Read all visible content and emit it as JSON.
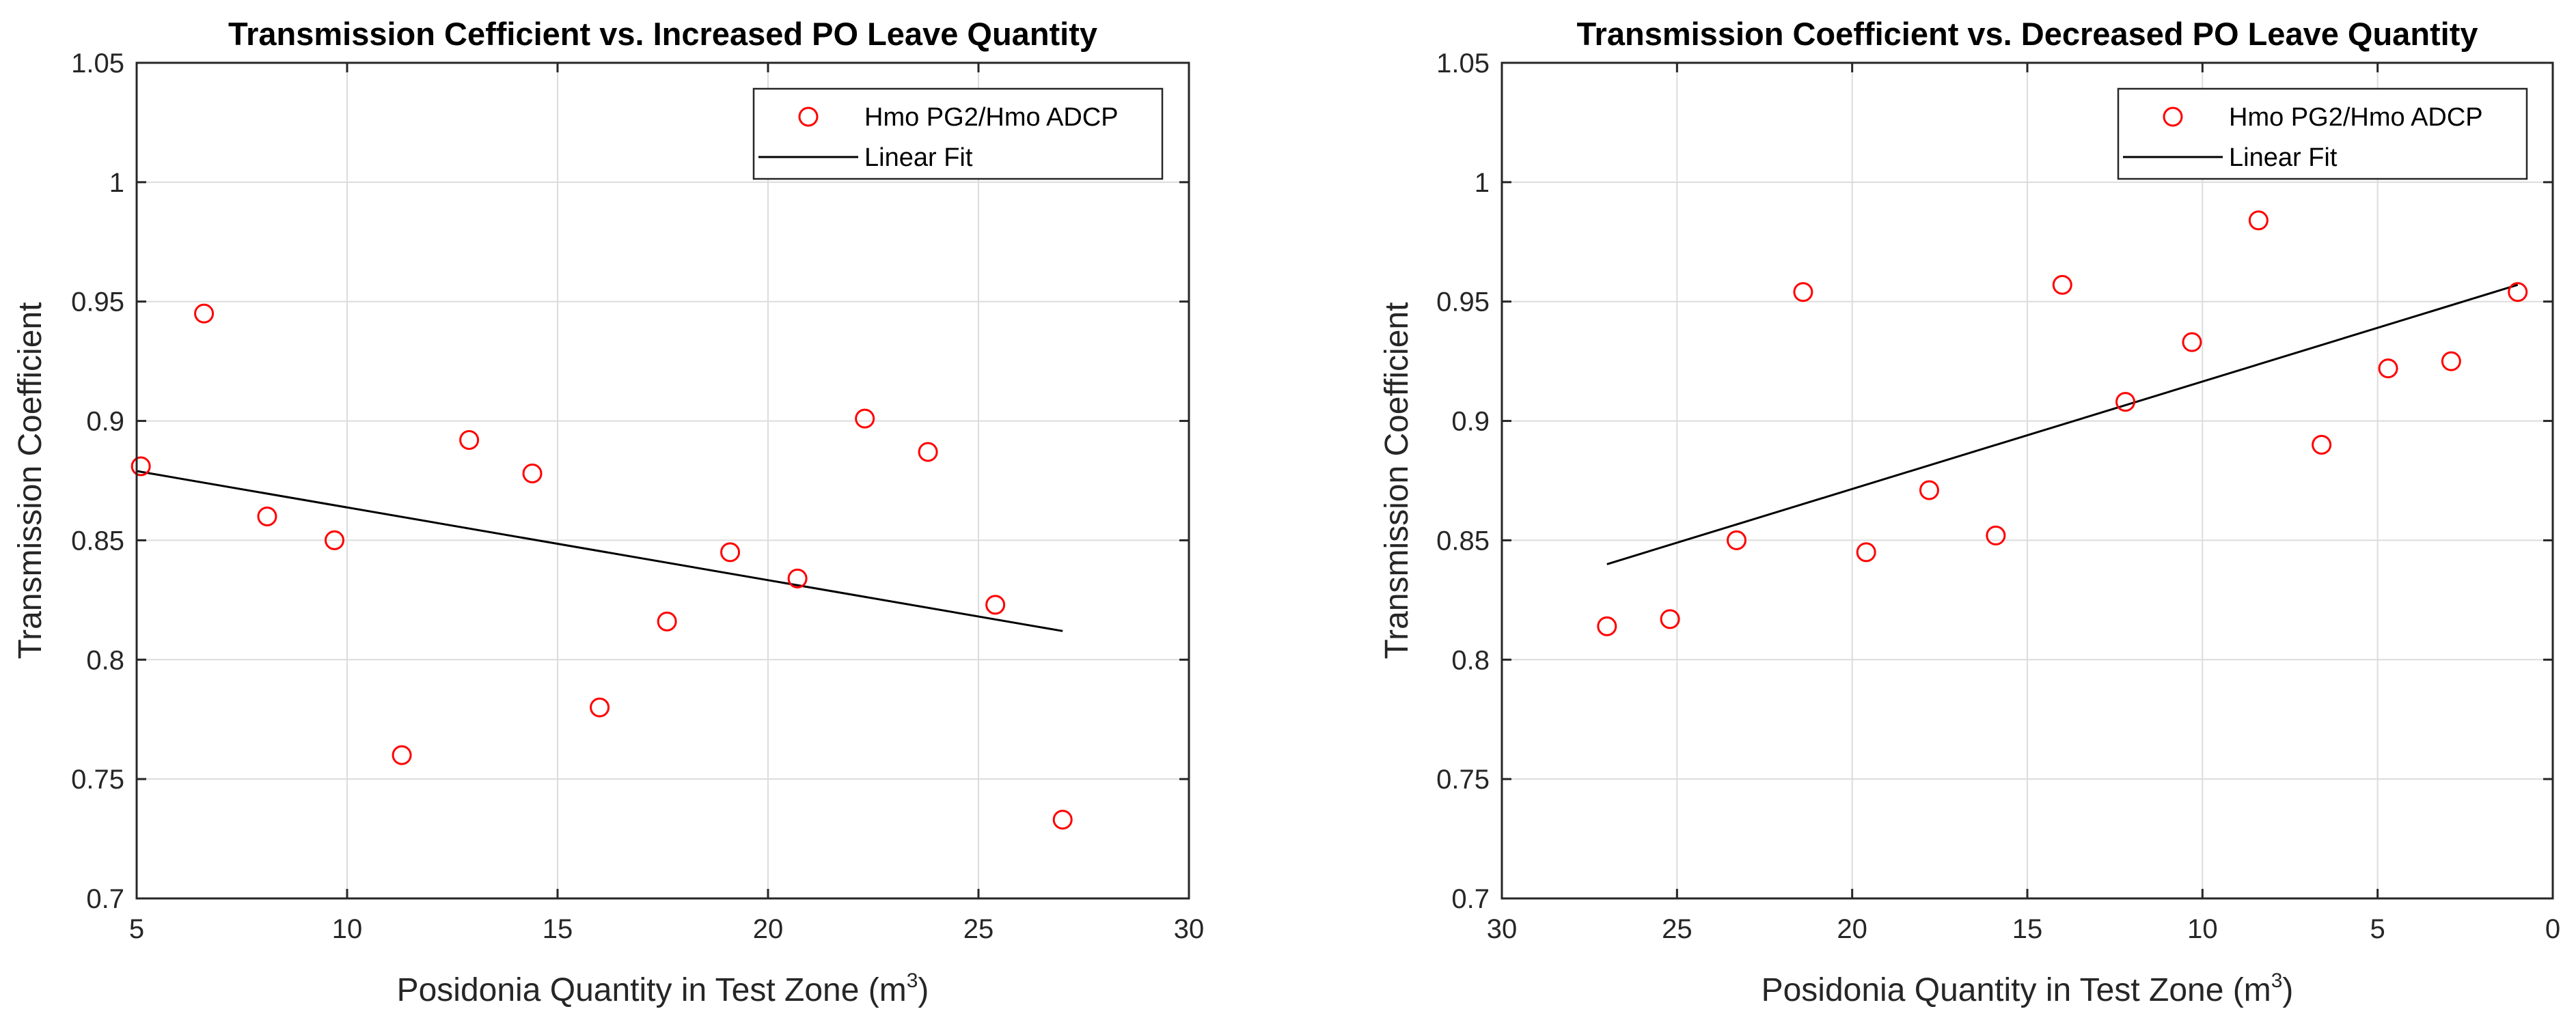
{
  "chart_data": [
    {
      "type": "scatter",
      "title": "Transmission Cefficient vs. Increased PO Leave Quantity",
      "xlabel": "Posidonia Quantity in Test Zone (m",
      "xlabel_sup": "3",
      "xlabel_close": ")",
      "ylabel": "Transmission Coefficient",
      "xlim": [
        5,
        30
      ],
      "ylim": [
        0.7,
        1.05
      ],
      "x_reversed": false,
      "xticks": [
        5,
        10,
        15,
        20,
        25,
        30
      ],
      "xtick_labels": [
        "5",
        "10",
        "15",
        "20",
        "25",
        "30"
      ],
      "yticks": [
        0.7,
        0.75,
        0.8,
        0.85,
        0.9,
        0.95,
        1.0,
        1.05
      ],
      "ytick_labels": [
        "0.7",
        "0.75",
        "0.8",
        "0.85",
        "0.9",
        "0.95",
        "1",
        "1.05"
      ],
      "grid": true,
      "legend_position": "top-right",
      "series": [
        {
          "name": "Hmo PG2/Hmo ADCP",
          "kind": "scatter",
          "color": "#ff0000",
          "x": [
            5.1,
            6.6,
            8.1,
            9.7,
            11.3,
            12.9,
            14.4,
            16.0,
            17.6,
            19.1,
            20.7,
            22.3,
            23.8,
            25.4,
            27.0
          ],
          "y": [
            0.881,
            0.945,
            0.86,
            0.85,
            0.76,
            0.892,
            0.878,
            0.78,
            0.816,
            0.845,
            0.834,
            0.901,
            0.887,
            0.823,
            0.733
          ]
        },
        {
          "name": "Linear Fit",
          "kind": "line",
          "color": "#000000",
          "x": [
            5.0,
            27.0
          ],
          "y": [
            0.879,
            0.812
          ]
        }
      ]
    },
    {
      "type": "scatter",
      "title": "Transmission Coefficient vs. Decreased PO Leave Quantity",
      "xlabel": "Posidonia Quantity in Test Zone (m",
      "xlabel_sup": "3",
      "xlabel_close": ")",
      "ylabel": "Transmission Coefficient",
      "xlim": [
        0,
        30
      ],
      "ylim": [
        0.7,
        1.05
      ],
      "x_reversed": true,
      "xticks": [
        30,
        25,
        20,
        15,
        10,
        5,
        0
      ],
      "xtick_labels": [
        "30",
        "25",
        "20",
        "15",
        "10",
        "5",
        "0"
      ],
      "yticks": [
        0.7,
        0.75,
        0.8,
        0.85,
        0.9,
        0.95,
        1.0,
        1.05
      ],
      "ytick_labels": [
        "0.7",
        "0.75",
        "0.8",
        "0.85",
        "0.9",
        "0.95",
        "1",
        "1.05"
      ],
      "grid": true,
      "legend_position": "top-right",
      "series": [
        {
          "name": "Hmo PG2/Hmo ADCP",
          "kind": "scatter",
          "color": "#ff0000",
          "x": [
            27.0,
            25.2,
            23.3,
            21.4,
            19.6,
            17.8,
            15.9,
            14.0,
            12.2,
            10.3,
            8.4,
            6.6,
            4.7,
            2.9,
            1.0
          ],
          "y": [
            0.814,
            0.817,
            0.85,
            0.954,
            0.845,
            0.871,
            0.852,
            0.957,
            0.908,
            0.933,
            0.984,
            0.89,
            0.922,
            0.925,
            0.954
          ]
        },
        {
          "name": "Linear Fit",
          "kind": "line",
          "color": "#000000",
          "x": [
            27.0,
            1.0
          ],
          "y": [
            0.84,
            0.957
          ]
        }
      ]
    }
  ]
}
